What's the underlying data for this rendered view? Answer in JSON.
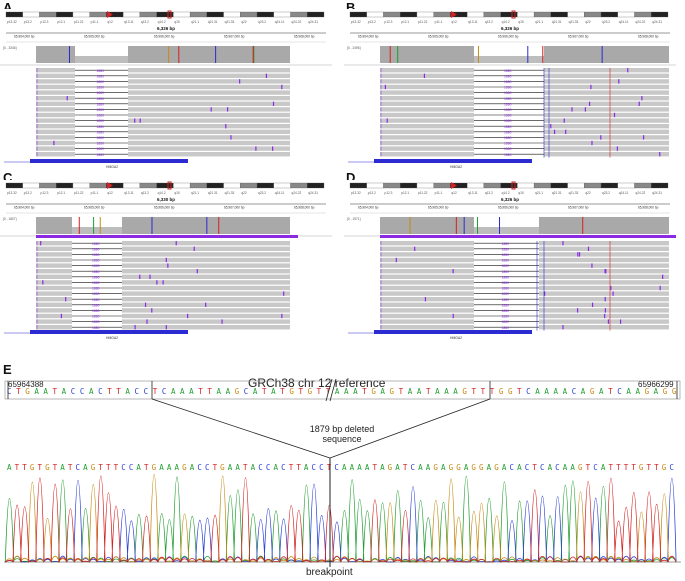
{
  "panels": [
    {
      "letter": "A",
      "span": "6,326 bp",
      "gene": "HMGA2",
      "depth": "[0 - 3346]",
      "ticks": [
        "65,964,000 bp",
        "65,965,000 bp",
        "65,966,000 bp",
        "65,967,000 bp",
        "65,968,000 bp"
      ]
    },
    {
      "letter": "B",
      "span": "6,326 bp",
      "gene": "HMGA2",
      "depth": "[0 - 2496]",
      "ticks": [
        "65,964,000 bp",
        "65,965,000 bp",
        "65,966,000 bp",
        "65,967,000 bp",
        "65,968,000 bp"
      ]
    },
    {
      "letter": "C",
      "span": "6,330 bp",
      "gene": "HMGA2",
      "depth": "[0 - 1807]",
      "ticks": [
        "65,964,000 bp",
        "65,965,000 bp",
        "65,966,000 bp",
        "65,967,000 bp",
        "65,968,000 bp"
      ]
    },
    {
      "letter": "D",
      "span": "6,326 bp",
      "gene": "HMGA2",
      "depth": "[0 - 1971]",
      "ticks": [
        "65,964,000 bp",
        "65,965,000 bp",
        "65,966,000 bp",
        "65,967,000 bp",
        "65,968,000 bp"
      ]
    }
  ],
  "ideogram_bands": [
    "p13.32",
    "p13.2",
    "p12.3",
    "p12.1",
    "p11.22",
    "p11.1",
    "q12",
    "q13.11",
    "q13.2",
    "q14.2",
    "q15",
    "q21.1",
    "q21.31",
    "q21.33",
    "q22",
    "q23.2",
    "q24.11",
    "q24.22",
    "q24.31"
  ],
  "insert_label": "1880",
  "panel_e": {
    "letter": "E",
    "reference_title": "GRCh38 chr 12 reference",
    "left_coord": "65964388",
    "right_coord": "65966299",
    "deletion_label_line1": "1879 bp deleted",
    "deletion_label_line2": "sequence",
    "breakpoint_label": "breakpoint",
    "ref_left_seq": "CTGAATACCACTTACCTCAAATTAAGCATATGTGTTA",
    "ref_right_seq": "AATGAGTAATAAAGTTTGGTCAAAACAGATCAAGAGG",
    "sample_seq": "ATTGTGTATCAGTTTCCATGAAAGACCTGAATACCACTTACCTCAAAATAGATCAAGAGGAGGAGACACTCACAAGTCATTTTGTTGC"
  },
  "colors": {
    "A": "#1f9e2f",
    "C": "#2a3fd6",
    "G": "#c58a12",
    "T": "#d42020",
    "read": "#c8c8c8",
    "insertion": "#8a2be2",
    "gene": "#2b2bd1"
  }
}
